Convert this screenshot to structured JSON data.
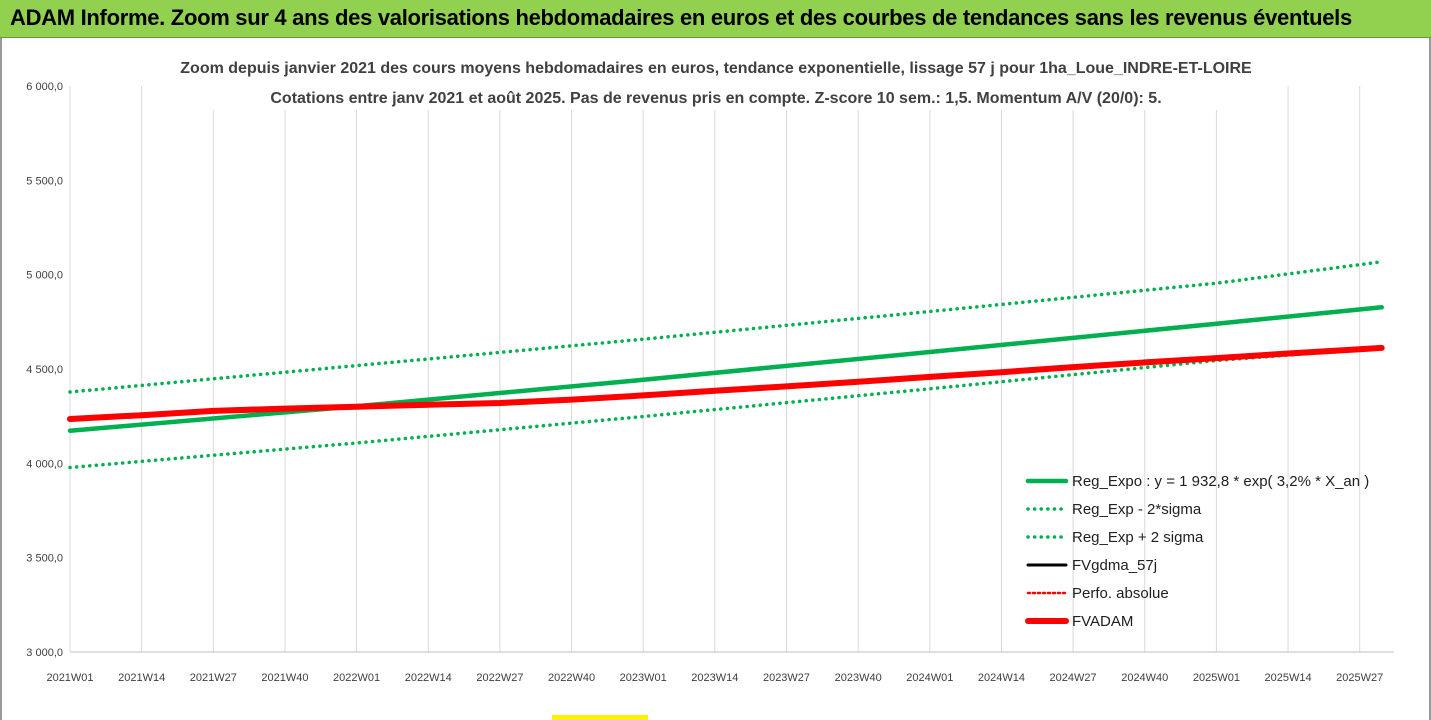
{
  "banner": {
    "title": "ADAM Informe. Zoom sur 4 ans des valorisations hebdomadaires en euros et des courbes de tendances sans les revenus éventuels"
  },
  "colors": {
    "banner_bg": "#92d050",
    "green": "#00b050",
    "red": "#ff0000",
    "black": "#000000"
  },
  "chart_data": {
    "type": "line",
    "title": "Zoom depuis janvier 2021 des cours moyens hebdomadaires en euros, tendance exponentielle, lissage 57 j pour 1ha_Loue_INDRE-ET-LOIRE",
    "subtitle": "Cotations entre janv 2021 et août 2025.  Pas de revenus pris en compte. Z-score 10 sem.: 1,5. Momentum A/V (20/0): 5.",
    "xlabel": "",
    "ylabel": "",
    "ylim": [
      3000,
      6000
    ],
    "y_ticks": [
      "6 000,0",
      "5 500,0",
      "5 000,0",
      "4 500,0",
      "4 000,0",
      "3 500,0",
      "3 000,0"
    ],
    "y_tick_values": [
      6000,
      5500,
      5000,
      4500,
      4000,
      3500,
      3000
    ],
    "x_ticks": [
      "2021W01",
      "2021W14",
      "2021W27",
      "2021W40",
      "2022W01",
      "2022W14",
      "2022W27",
      "2022W40",
      "2023W01",
      "2023W14",
      "2023W27",
      "2023W40",
      "2024W01",
      "2024W14",
      "2024W27",
      "2024W40",
      "2025W01",
      "2025W14",
      "2025W27"
    ],
    "x_range": [
      "2021W01",
      "2025W31"
    ],
    "grid": "vertical",
    "legend_position": "bottom-right",
    "series": [
      {
        "name": "Reg_Expo : y = 1 932,8 * exp( 3,2% *  X_an )",
        "style": "solid-thick",
        "color": "#00b050",
        "x": [
          "2021W01",
          "2022W01",
          "2023W01",
          "2024W01",
          "2025W01",
          "2025W31"
        ],
        "values": [
          4173,
          4303,
          4443,
          4590,
          4740,
          4827
        ]
      },
      {
        "name": "Reg_Exp - 2*sigma",
        "style": "dotted",
        "color": "#00b050",
        "x": [
          "2021W01",
          "2022W01",
          "2023W01",
          "2024W01",
          "2025W01",
          "2025W31"
        ],
        "values": [
          3978,
          4108,
          4248,
          4395,
          4545,
          4610
        ]
      },
      {
        "name": "Reg_Exp + 2 sigma",
        "style": "dotted",
        "color": "#00b050",
        "x": [
          "2021W01",
          "2022W01",
          "2023W01",
          "2024W01",
          "2025W01",
          "2025W31"
        ],
        "values": [
          4378,
          4518,
          4658,
          4805,
          4955,
          5068
        ]
      },
      {
        "name": "FVgdma_57j",
        "style": "solid",
        "color": "#000000",
        "x": [],
        "values": []
      },
      {
        "name": "Perfo. absolue",
        "style": "dotted",
        "color": "#ff0000",
        "x": [],
        "values": []
      },
      {
        "name": "FVADAM",
        "style": "solid-thick",
        "color": "#ff0000",
        "x": [
          "2021W01",
          "2021W14",
          "2021W27",
          "2021W40",
          "2022W01",
          "2022W14",
          "2022W27",
          "2022W40",
          "2023W01",
          "2023W14",
          "2023W27",
          "2023W40",
          "2024W01",
          "2024W14",
          "2024W27",
          "2024W40",
          "2025W01",
          "2025W14",
          "2025W27",
          "2025W31"
        ],
        "values": [
          4235,
          4255,
          4278,
          4290,
          4300,
          4310,
          4320,
          4338,
          4360,
          4385,
          4408,
          4432,
          4458,
          4483,
          4510,
          4535,
          4558,
          4582,
          4605,
          4612
        ]
      }
    ]
  }
}
